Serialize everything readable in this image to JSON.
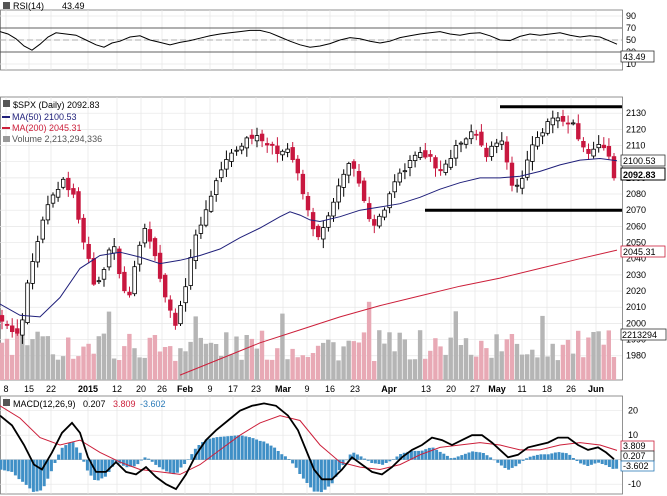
{
  "chart_data": [
    {
      "type": "line",
      "panel": "rsi",
      "legend": "RSI(14)",
      "legend_value": "43.49",
      "last_value": 43.49,
      "ylim": [
        0,
        100
      ],
      "y_ticks": [
        10,
        30,
        50,
        70,
        90
      ],
      "reference_lines": [
        30,
        50,
        70
      ],
      "grid": true,
      "points": [
        [
          0,
          64
        ],
        [
          8,
          60
        ],
        [
          16,
          52
        ],
        [
          24,
          40
        ],
        [
          32,
          33
        ],
        [
          40,
          43
        ],
        [
          48,
          55
        ],
        [
          56,
          62
        ],
        [
          66,
          60
        ],
        [
          76,
          58
        ],
        [
          86,
          50
        ],
        [
          96,
          42
        ],
        [
          104,
          38
        ],
        [
          112,
          45
        ],
        [
          120,
          48
        ],
        [
          130,
          55
        ],
        [
          140,
          57
        ],
        [
          150,
          50
        ],
        [
          160,
          46
        ],
        [
          170,
          42
        ],
        [
          180,
          46
        ],
        [
          190,
          49
        ],
        [
          200,
          53
        ],
        [
          210,
          57
        ],
        [
          220,
          60
        ],
        [
          230,
          62
        ],
        [
          240,
          64
        ],
        [
          250,
          66
        ],
        [
          260,
          66
        ],
        [
          270,
          62
        ],
        [
          280,
          55
        ],
        [
          290,
          48
        ],
        [
          300,
          42
        ],
        [
          310,
          38
        ],
        [
          320,
          40
        ],
        [
          330,
          44
        ],
        [
          340,
          50
        ],
        [
          350,
          54
        ],
        [
          360,
          52
        ],
        [
          370,
          48
        ],
        [
          380,
          45
        ],
        [
          390,
          48
        ],
        [
          400,
          54
        ],
        [
          410,
          57
        ],
        [
          420,
          60
        ],
        [
          430,
          62
        ],
        [
          440,
          64
        ],
        [
          450,
          60
        ],
        [
          460,
          58
        ],
        [
          470,
          61
        ],
        [
          480,
          62
        ],
        [
          490,
          57
        ],
        [
          500,
          50
        ],
        [
          510,
          49
        ],
        [
          520,
          56
        ],
        [
          530,
          60
        ],
        [
          540,
          58
        ],
        [
          550,
          60
        ],
        [
          560,
          62
        ],
        [
          570,
          58
        ],
        [
          580,
          55
        ],
        [
          590,
          57
        ],
        [
          600,
          55
        ],
        [
          610,
          48
        ],
        [
          617,
          43
        ]
      ]
    },
    {
      "type": "candlestick",
      "panel": "price",
      "legend": "$SPX (Daily) 2092.83",
      "last_close": 2092.83,
      "ylim": [
        1965,
        2140
      ],
      "y_ticks": [
        1980,
        1990,
        2000,
        2010,
        2020,
        2030,
        2040,
        2050,
        2060,
        2070,
        2080,
        2090,
        2100,
        2110,
        2120,
        2130
      ],
      "x_tick_labels": [
        "8",
        "15",
        "22",
        "2015",
        "12",
        "20",
        "26",
        "Feb",
        "9",
        "17",
        "23",
        "Mar",
        "9",
        "16",
        "23",
        "Apr",
        "13",
        "20",
        "27",
        "May",
        "11",
        "18",
        "26",
        "Jun"
      ],
      "trend_lines": [
        {
          "name": "resistance",
          "value": 2134,
          "x_start": 500,
          "x_end": 622
        },
        {
          "name": "support",
          "value": 2070,
          "x_start": 425,
          "x_end": 622
        }
      ],
      "price_path": [
        [
          0,
          2005
        ],
        [
          10,
          1995
        ],
        [
          20,
          1992
        ],
        [
          28,
          2025
        ],
        [
          36,
          2045
        ],
        [
          46,
          2070
        ],
        [
          54,
          2080
        ],
        [
          62,
          2088
        ],
        [
          72,
          2082
        ],
        [
          80,
          2062
        ],
        [
          88,
          2040
        ],
        [
          96,
          2020
        ],
        [
          104,
          2035
        ],
        [
          112,
          2052
        ],
        [
          120,
          2030
        ],
        [
          128,
          2012
        ],
        [
          136,
          2040
        ],
        [
          144,
          2062
        ],
        [
          152,
          2048
        ],
        [
          160,
          2030
        ],
        [
          168,
          2010
        ],
        [
          176,
          2000
        ],
        [
          182,
          2012
        ],
        [
          190,
          2040
        ],
        [
          198,
          2058
        ],
        [
          206,
          2070
        ],
        [
          214,
          2085
        ],
        [
          222,
          2096
        ],
        [
          230,
          2104
        ],
        [
          238,
          2108
        ],
        [
          246,
          2114
        ],
        [
          254,
          2117
        ],
        [
          262,
          2115
        ],
        [
          270,
          2109
        ],
        [
          278,
          2106
        ],
        [
          286,
          2110
        ],
        [
          294,
          2100
        ],
        [
          302,
          2082
        ],
        [
          310,
          2065
        ],
        [
          318,
          2052
        ],
        [
          326,
          2062
        ],
        [
          334,
          2074
        ],
        [
          342,
          2092
        ],
        [
          350,
          2100
        ],
        [
          358,
          2088
        ],
        [
          366,
          2070
        ],
        [
          374,
          2062
        ],
        [
          382,
          2067
        ],
        [
          390,
          2080
        ],
        [
          398,
          2090
        ],
        [
          406,
          2096
        ],
        [
          414,
          2102
        ],
        [
          422,
          2104
        ],
        [
          430,
          2106
        ],
        [
          438,
          2090
        ],
        [
          446,
          2098
        ],
        [
          454,
          2108
        ],
        [
          462,
          2112
        ],
        [
          470,
          2118
        ],
        [
          478,
          2114
        ],
        [
          486,
          2104
        ],
        [
          494,
          2110
        ],
        [
          502,
          2114
        ],
        [
          510,
          2088
        ],
        [
          518,
          2084
        ],
        [
          526,
          2098
        ],
        [
          534,
          2114
        ],
        [
          542,
          2118
        ],
        [
          550,
          2126
        ],
        [
          558,
          2128
        ],
        [
          566,
          2126
        ],
        [
          574,
          2122
        ],
        [
          582,
          2110
        ],
        [
          590,
          2104
        ],
        [
          598,
          2112
        ],
        [
          606,
          2108
        ],
        [
          614,
          2092
        ]
      ],
      "series": [
        {
          "name": "MA(50)",
          "legend": "MA(50) 2100.53",
          "last_value": 2100.53,
          "color": "#1f1f7a",
          "points": [
            [
              0,
              2012
            ],
            [
              20,
              2005
            ],
            [
              40,
              2004
            ],
            [
              60,
              2016
            ],
            [
              80,
              2034
            ],
            [
              100,
              2042
            ],
            [
              120,
              2044
            ],
            [
              140,
              2041
            ],
            [
              160,
              2037
            ],
            [
              180,
              2039
            ],
            [
              200,
              2042
            ],
            [
              220,
              2046
            ],
            [
              240,
              2053
            ],
            [
              260,
              2059
            ],
            [
              280,
              2066
            ],
            [
              290,
              2069
            ],
            [
              300,
              2067
            ],
            [
              310,
              2064
            ],
            [
              320,
              2063
            ],
            [
              340,
              2066
            ],
            [
              360,
              2070
            ],
            [
              380,
              2072
            ],
            [
              400,
              2074
            ],
            [
              420,
              2078
            ],
            [
              440,
              2083
            ],
            [
              460,
              2087
            ],
            [
              480,
              2090
            ],
            [
              500,
              2090
            ],
            [
              520,
              2091
            ],
            [
              540,
              2094
            ],
            [
              560,
              2098
            ],
            [
              580,
              2101
            ],
            [
              600,
              2102
            ],
            [
              617,
              2100.53
            ]
          ]
        },
        {
          "name": "MA(200)",
          "legend": "MA(200) 2045.31",
          "last_value": 2045.31,
          "color": "#cc1f3a",
          "points": [
            [
              180,
              1968
            ],
            [
              220,
              1978
            ],
            [
              260,
              1988
            ],
            [
              300,
              1996
            ],
            [
              340,
              2004
            ],
            [
              380,
              2011
            ],
            [
              420,
              2017
            ],
            [
              460,
              2023
            ],
            [
              500,
              2028
            ],
            [
              540,
              2034
            ],
            [
              580,
              2040
            ],
            [
              617,
              2045.31
            ]
          ]
        }
      ],
      "volume": {
        "legend": "Volume 2,213,294,336",
        "last_value": 2213294336,
        "label": "2213294"
      }
    },
    {
      "type": "line",
      "panel": "macd",
      "legend": "MACD(12,26,9)",
      "values": [
        "0.207",
        "3.809",
        "-3.602"
      ],
      "value_colors": [
        "#000000",
        "#cc1f3a",
        "#2a7ab8"
      ],
      "ylim": [
        -14,
        26
      ],
      "y_ticks": [
        -10,
        0,
        10,
        20
      ],
      "series": [
        {
          "name": "MACD",
          "color": "#000000",
          "last_value": 0.207,
          "points": [
            [
              0,
              18
            ],
            [
              12,
              14
            ],
            [
              24,
              6
            ],
            [
              34,
              -2
            ],
            [
              42,
              -4
            ],
            [
              52,
              3
            ],
            [
              62,
              11
            ],
            [
              72,
              15
            ],
            [
              80,
              11
            ],
            [
              88,
              1
            ],
            [
              96,
              -5
            ],
            [
              106,
              -5
            ],
            [
              116,
              -1
            ],
            [
              126,
              -5
            ],
            [
              136,
              -6
            ],
            [
              146,
              -3
            ],
            [
              156,
              -7
            ],
            [
              166,
              -10
            ],
            [
              176,
              -12
            ],
            [
              186,
              -6
            ],
            [
              196,
              2
            ],
            [
              206,
              8
            ],
            [
              216,
              12
            ],
            [
              228,
              16
            ],
            [
              240,
              20
            ],
            [
              252,
              22
            ],
            [
              264,
              23
            ],
            [
              276,
              22
            ],
            [
              288,
              18
            ],
            [
              298,
              12
            ],
            [
              306,
              4
            ],
            [
              314,
              -4
            ],
            [
              322,
              -8
            ],
            [
              332,
              -8
            ],
            [
              342,
              -4
            ],
            [
              352,
              1
            ],
            [
              362,
              -2
            ],
            [
              372,
              -5
            ],
            [
              382,
              -6
            ],
            [
              392,
              -3
            ],
            [
              402,
              1
            ],
            [
              412,
              4
            ],
            [
              422,
              6
            ],
            [
              432,
              9
            ],
            [
              442,
              8
            ],
            [
              452,
              6
            ],
            [
              462,
              8
            ],
            [
              472,
              10
            ],
            [
              482,
              10
            ],
            [
              492,
              7
            ],
            [
              500,
              4
            ],
            [
              508,
              1
            ],
            [
              518,
              2
            ],
            [
              528,
              5
            ],
            [
              538,
              6
            ],
            [
              548,
              7
            ],
            [
              558,
              9
            ],
            [
              568,
              9
            ],
            [
              578,
              6
            ],
            [
              588,
              4
            ],
            [
              598,
              5
            ],
            [
              606,
              3
            ],
            [
              614,
              0.207
            ]
          ]
        },
        {
          "name": "Signal",
          "color": "#cc1f3a",
          "last_value": 3.809,
          "points": [
            [
              0,
              22
            ],
            [
              20,
              17
            ],
            [
              40,
              9
            ],
            [
              60,
              6
            ],
            [
              80,
              8
            ],
            [
              100,
              3
            ],
            [
              120,
              -1
            ],
            [
              140,
              -4
            ],
            [
              160,
              -5
            ],
            [
              180,
              -6
            ],
            [
              200,
              -2
            ],
            [
              220,
              4
            ],
            [
              240,
              10
            ],
            [
              260,
              15
            ],
            [
              280,
              18
            ],
            [
              300,
              16
            ],
            [
              320,
              6
            ],
            [
              340,
              -1
            ],
            [
              360,
              -3
            ],
            [
              380,
              -4
            ],
            [
              400,
              -2
            ],
            [
              420,
              2
            ],
            [
              440,
              5
            ],
            [
              460,
              6
            ],
            [
              480,
              7
            ],
            [
              500,
              6
            ],
            [
              520,
              4
            ],
            [
              540,
              4
            ],
            [
              560,
              6
            ],
            [
              580,
              7
            ],
            [
              600,
              6
            ],
            [
              617,
              3.809
            ]
          ]
        },
        {
          "name": "Histogram",
          "color": "#3f8fc6",
          "last_value": -3.602
        }
      ]
    }
  ]
}
